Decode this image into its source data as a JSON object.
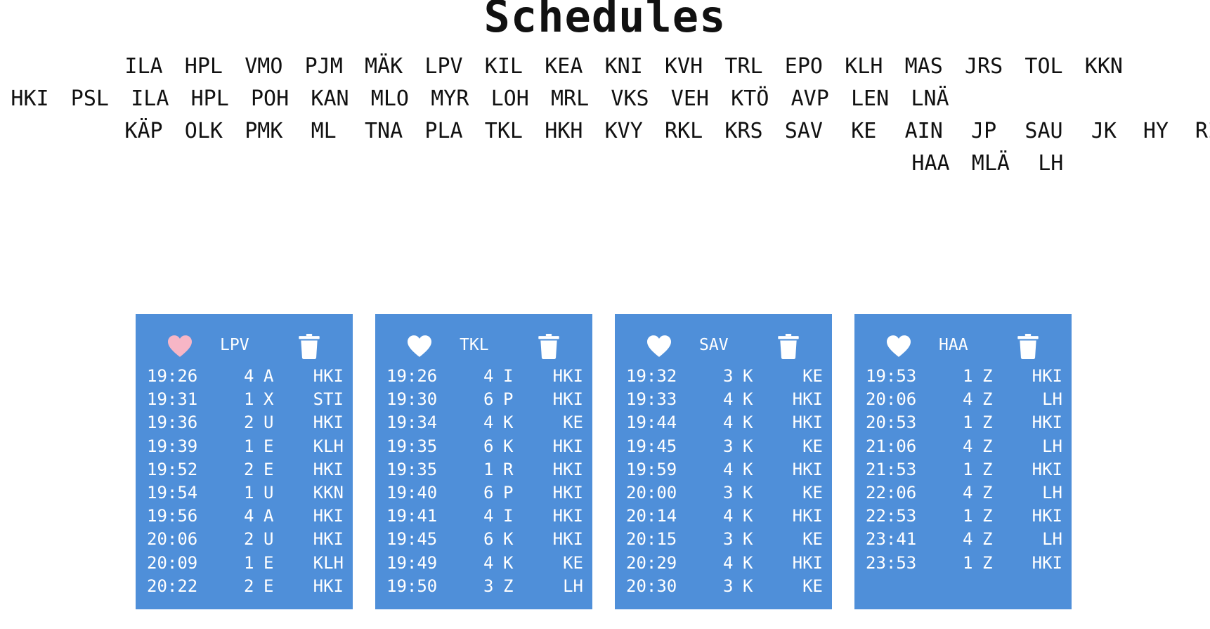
{
  "title": "Schedules",
  "stations": {
    "row1": [
      "ILA",
      "HPL",
      "VMO",
      "PJM",
      "MÄK",
      "LPV",
      "KIL",
      "KEA",
      "KNI",
      "KVH",
      "TRL",
      "EPO",
      "KLH",
      "MAS",
      "JRS",
      "TOL",
      "KKN"
    ],
    "row2": [
      "HKI",
      "PSL",
      "ILA",
      "HPL",
      "POH",
      "KAN",
      "MLO",
      "MYR",
      "LOH",
      "MRL",
      "VKS",
      "VEH",
      "KTÖ",
      "AVP",
      "LEN",
      "LNÄ"
    ],
    "row3": [
      "KÄP",
      "OLK",
      "PMK",
      "ML",
      "TNA",
      "PLA",
      "TKL",
      "HKH",
      "KVY",
      "RKL",
      "KRS",
      "SAV",
      "KE",
      "AIN",
      "JP",
      "SAU",
      "JK",
      "HY",
      "RI"
    ],
    "row4": [
      "HAA",
      "MLÄ",
      "LH"
    ]
  },
  "colors": {
    "card_bg": "#4f8fd9",
    "favorite_active": "#f7b6c6",
    "favorite_inactive": "#ffffff"
  },
  "cards": [
    {
      "station": "LPV",
      "favorite": true,
      "rows": [
        {
          "time": "19:26",
          "track": "4",
          "line": "A",
          "dest": "HKI"
        },
        {
          "time": "19:31",
          "track": "1",
          "line": "X",
          "dest": "STI"
        },
        {
          "time": "19:36",
          "track": "2",
          "line": "U",
          "dest": "HKI"
        },
        {
          "time": "19:39",
          "track": "1",
          "line": "E",
          "dest": "KLH"
        },
        {
          "time": "19:52",
          "track": "2",
          "line": "E",
          "dest": "HKI"
        },
        {
          "time": "19:54",
          "track": "1",
          "line": "U",
          "dest": "KKN"
        },
        {
          "time": "19:56",
          "track": "4",
          "line": "A",
          "dest": "HKI"
        },
        {
          "time": "20:06",
          "track": "2",
          "line": "U",
          "dest": "HKI"
        },
        {
          "time": "20:09",
          "track": "1",
          "line": "E",
          "dest": "KLH"
        },
        {
          "time": "20:22",
          "track": "2",
          "line": "E",
          "dest": "HKI"
        }
      ]
    },
    {
      "station": "TKL",
      "favorite": false,
      "rows": [
        {
          "time": "19:26",
          "track": "4",
          "line": "I",
          "dest": "HKI"
        },
        {
          "time": "19:30",
          "track": "6",
          "line": "P",
          "dest": "HKI"
        },
        {
          "time": "19:34",
          "track": "4",
          "line": "K",
          "dest": "KE"
        },
        {
          "time": "19:35",
          "track": "6",
          "line": "K",
          "dest": "HKI"
        },
        {
          "time": "19:35",
          "track": "1",
          "line": "R",
          "dest": "HKI"
        },
        {
          "time": "19:40",
          "track": "6",
          "line": "P",
          "dest": "HKI"
        },
        {
          "time": "19:41",
          "track": "4",
          "line": "I",
          "dest": "HKI"
        },
        {
          "time": "19:45",
          "track": "6",
          "line": "K",
          "dest": "HKI"
        },
        {
          "time": "19:49",
          "track": "4",
          "line": "K",
          "dest": "KE"
        },
        {
          "time": "19:50",
          "track": "3",
          "line": "Z",
          "dest": "LH"
        }
      ]
    },
    {
      "station": "SAV",
      "favorite": false,
      "rows": [
        {
          "time": "19:32",
          "track": "3",
          "line": "K",
          "dest": "KE"
        },
        {
          "time": "19:33",
          "track": "4",
          "line": "K",
          "dest": "HKI"
        },
        {
          "time": "19:44",
          "track": "4",
          "line": "K",
          "dest": "HKI"
        },
        {
          "time": "19:45",
          "track": "3",
          "line": "K",
          "dest": "KE"
        },
        {
          "time": "19:59",
          "track": "4",
          "line": "K",
          "dest": "HKI"
        },
        {
          "time": "20:00",
          "track": "3",
          "line": "K",
          "dest": "KE"
        },
        {
          "time": "20:14",
          "track": "4",
          "line": "K",
          "dest": "HKI"
        },
        {
          "time": "20:15",
          "track": "3",
          "line": "K",
          "dest": "KE"
        },
        {
          "time": "20:29",
          "track": "4",
          "line": "K",
          "dest": "HKI"
        },
        {
          "time": "20:30",
          "track": "3",
          "line": "K",
          "dest": "KE"
        }
      ]
    },
    {
      "station": "HAA",
      "favorite": false,
      "rows": [
        {
          "time": "19:53",
          "track": "1",
          "line": "Z",
          "dest": "HKI"
        },
        {
          "time": "20:06",
          "track": "4",
          "line": "Z",
          "dest": "LH"
        },
        {
          "time": "20:53",
          "track": "1",
          "line": "Z",
          "dest": "HKI"
        },
        {
          "time": "21:06",
          "track": "4",
          "line": "Z",
          "dest": "LH"
        },
        {
          "time": "21:53",
          "track": "1",
          "line": "Z",
          "dest": "HKI"
        },
        {
          "time": "22:06",
          "track": "4",
          "line": "Z",
          "dest": "LH"
        },
        {
          "time": "22:53",
          "track": "1",
          "line": "Z",
          "dest": "HKI"
        },
        {
          "time": "23:41",
          "track": "4",
          "line": "Z",
          "dest": "LH"
        },
        {
          "time": "23:53",
          "track": "1",
          "line": "Z",
          "dest": "HKI"
        }
      ]
    }
  ]
}
